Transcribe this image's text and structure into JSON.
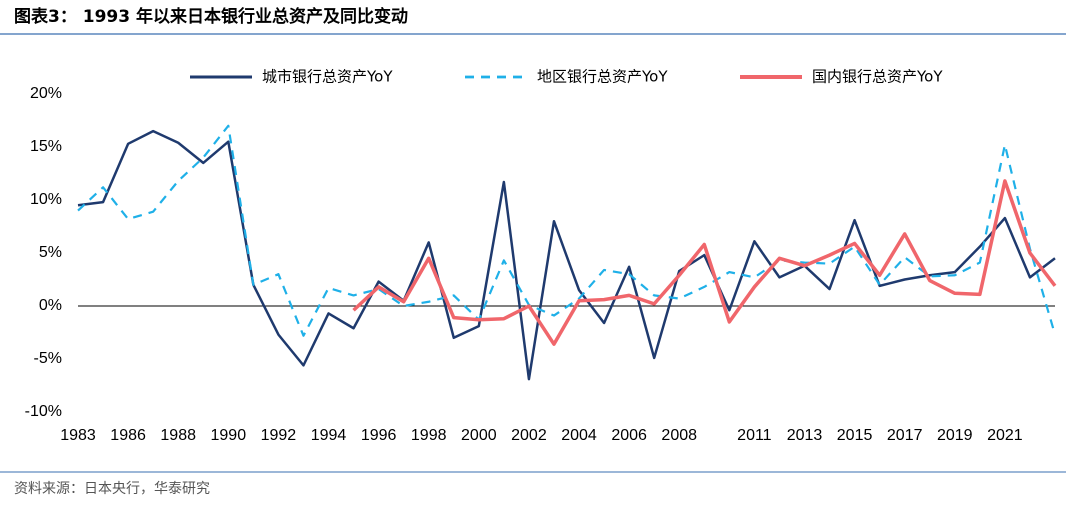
{
  "title": "图表3： 1993 年以来日本银行业总资产及同比变动",
  "source": "资料来源：日本央行，华泰研究",
  "chart_data": {
    "type": "line",
    "categories": [
      "1983",
      null,
      "1986",
      null,
      "1988",
      null,
      "1990",
      null,
      "1992",
      null,
      "1994",
      null,
      "1996",
      null,
      "1998",
      null,
      "2000",
      null,
      "2002",
      null,
      "2004",
      null,
      "2006",
      null,
      "2008",
      null,
      null,
      "2011",
      null,
      "2013",
      null,
      "2015",
      null,
      "2017",
      null,
      "2019",
      null,
      "2021",
      null,
      null
    ],
    "ylim": [
      -10,
      20
    ],
    "yticks": [
      {
        "value": -10,
        "label": "-10%"
      },
      {
        "value": -5,
        "label": "-5%"
      },
      {
        "value": 0,
        "label": "0%"
      },
      {
        "value": 5,
        "label": "5%"
      },
      {
        "value": 10,
        "label": "10%"
      },
      {
        "value": 15,
        "label": "15%"
      },
      {
        "value": 20,
        "label": "20%"
      }
    ],
    "legend": "top",
    "series": [
      {
        "name": "城市银行总资产YoY",
        "color": "#1f3a6e",
        "style": "solid",
        "values": [
          9.5,
          9.8,
          15.3,
          16.5,
          15.4,
          13.5,
          15.5,
          2.0,
          -2.7,
          -5.6,
          -0.7,
          -2.1,
          2.3,
          0.5,
          6.0,
          -3.0,
          -1.9,
          11.7,
          -6.9,
          8.0,
          1.5,
          -1.6,
          3.7,
          -4.9,
          3.3,
          4.8,
          -0.4,
          6.1,
          2.7,
          3.8,
          1.6,
          8.1,
          1.9,
          2.5,
          2.9,
          3.2,
          5.6,
          8.3,
          2.7,
          4.5
        ]
      },
      {
        "name": "地区银行总资产YoY",
        "color": "#1fb0e8",
        "style": "dashed",
        "values": [
          9.0,
          11.2,
          8.2,
          8.9,
          11.8,
          14.0,
          17.0,
          2.0,
          3.0,
          -2.8,
          1.7,
          1.0,
          1.6,
          0.0,
          0.4,
          1.0,
          -1.3,
          4.3,
          0.1,
          -0.9,
          0.7,
          3.4,
          3.0,
          1.0,
          0.7,
          1.8,
          3.2,
          2.7,
          4.3,
          4.1,
          4.0,
          5.6,
          2.0,
          4.6,
          2.8,
          2.9,
          4.1,
          15.2,
          5.4,
          -2.7
        ]
      },
      {
        "name": "国内银行总资产YoY",
        "color": "#f0666b",
        "style": "solid-thick",
        "values": [
          null,
          null,
          null,
          null,
          null,
          null,
          null,
          null,
          null,
          null,
          null,
          -0.4,
          1.8,
          0.4,
          4.5,
          -1.1,
          -1.3,
          -1.2,
          0.0,
          -3.6,
          0.5,
          0.6,
          1.0,
          0.2,
          2.9,
          5.8,
          -1.5,
          1.8,
          4.5,
          3.8,
          4.8,
          5.9,
          2.9,
          6.8,
          2.4,
          1.2,
          1.1,
          11.8,
          5.0,
          1.9
        ]
      }
    ]
  }
}
